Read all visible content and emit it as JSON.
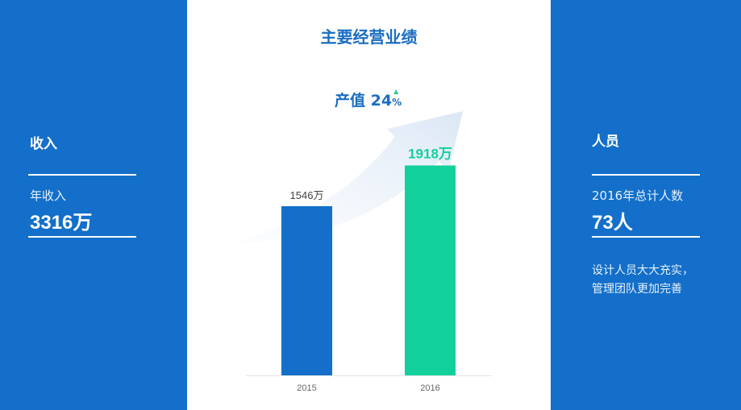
{
  "left": {
    "title": "收入",
    "label": "年收入",
    "value": "3316万"
  },
  "right": {
    "title": "人员",
    "label": "2016年总计人数",
    "value": "73人",
    "note_lines": [
      "设计人员大大充实，",
      "管理团队更加完善"
    ]
  },
  "center": {
    "title": "主要经营业绩",
    "growth_label": "产值",
    "growth_value": "24",
    "growth_unit": "%",
    "growth_direction": "up"
  },
  "colors": {
    "panel": "#136fc9",
    "bar_2015": "#136fc9",
    "bar_2016": "#12d09b",
    "growth_up": "#2fc79a"
  },
  "chart_data": {
    "type": "bar",
    "categories": [
      "2015",
      "2016"
    ],
    "values": [
      1546,
      1918
    ],
    "data_labels": [
      "1546万",
      "1918万"
    ],
    "ylim": [
      0,
      2000
    ],
    "grid": false
  }
}
